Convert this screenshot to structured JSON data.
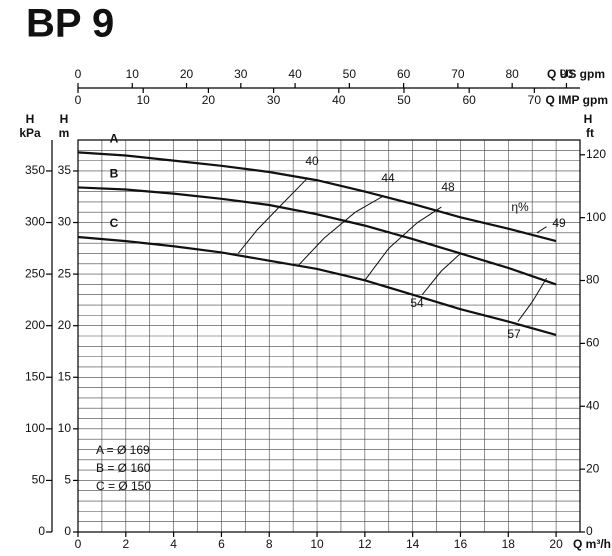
{
  "chart_data": {
    "type": "line",
    "title": "BP 9",
    "xlabel": "Q m³/h",
    "ylabel": {
      "symbol": "H",
      "unit": "m"
    },
    "y_kpa_label": {
      "symbol": "H",
      "unit": "kPa"
    },
    "y2label": {
      "symbol": "H",
      "unit": "ft"
    },
    "x_us_label": "Q US gpm",
    "x_imp_label": "Q IMP gpm",
    "xlim": [
      0,
      21
    ],
    "xticks": [
      0,
      2,
      4,
      6,
      8,
      10,
      12,
      14,
      16,
      18,
      20
    ],
    "xgrid": [
      0,
      1,
      2,
      3,
      4,
      5,
      6,
      7,
      8,
      9,
      10,
      11,
      12,
      13,
      14,
      15,
      16,
      17,
      18,
      19,
      20,
      21
    ],
    "ylim": [
      0,
      38
    ],
    "yticks": [
      0,
      5,
      10,
      15,
      20,
      25,
      30,
      35
    ],
    "ygrid": [
      0,
      1,
      2,
      3,
      4,
      5,
      6,
      7,
      8,
      9,
      10,
      11,
      12,
      13,
      14,
      15,
      16,
      17,
      18,
      19,
      20,
      21,
      22,
      23,
      24,
      25,
      26,
      27,
      28,
      29,
      30,
      31,
      32,
      33,
      34,
      35,
      36,
      37,
      38
    ],
    "y_kpa_lim": [
      0,
      380
    ],
    "y_kpa_ticks": [
      0,
      50,
      100,
      150,
      200,
      250,
      300,
      350
    ],
    "y2lim": [
      0,
      124.7
    ],
    "y2ticks": [
      0,
      20,
      40,
      60,
      80,
      100,
      120
    ],
    "x_us_lim": [
      0,
      92.5
    ],
    "x_us_ticks": [
      0,
      10,
      20,
      30,
      40,
      50,
      60,
      70,
      80,
      90
    ],
    "x_imp_lim": [
      0,
      77
    ],
    "x_imp_ticks": [
      0,
      10,
      20,
      30,
      40,
      50,
      60,
      70
    ],
    "x": [
      0,
      2,
      4,
      6,
      8,
      10,
      12,
      14,
      16,
      18,
      20
    ],
    "series": [
      {
        "name": "A",
        "color": "#111111",
        "values": [
          36.8,
          36.5,
          36.0,
          35.5,
          34.9,
          34.1,
          33.0,
          31.8,
          30.5,
          29.4,
          28.2
        ]
      },
      {
        "name": "B",
        "color": "#111111",
        "values": [
          33.4,
          33.2,
          32.8,
          32.3,
          31.7,
          30.8,
          29.7,
          28.4,
          27.0,
          25.6,
          24.0
        ]
      },
      {
        "name": "C",
        "color": "#111111",
        "values": [
          28.6,
          28.2,
          27.7,
          27.1,
          26.3,
          25.5,
          24.4,
          23.0,
          21.6,
          20.4,
          19.1
        ]
      }
    ],
    "impellers": [
      "A = Ø 169",
      "B = Ø 160",
      "C = Ø 150"
    ],
    "efficiency": {
      "label": "η%",
      "lines": [
        {
          "name": "40",
          "x": [
            6.7,
            7.5,
            8.5,
            9.6
          ],
          "y": [
            27.0,
            29.3,
            31.7,
            34.3
          ]
        },
        {
          "name": "44",
          "x": [
            9.2,
            10.3,
            11.6,
            12.8
          ],
          "y": [
            25.8,
            28.5,
            31.0,
            32.6
          ]
        },
        {
          "name": "48",
          "x": [
            12.0,
            13.0,
            14.2,
            15.2
          ],
          "y": [
            24.4,
            27.5,
            30.0,
            31.5
          ]
        },
        {
          "name": "49",
          "x": [
            19.2,
            19.6
          ],
          "y": [
            29.0,
            29.6
          ]
        },
        {
          "name": "54",
          "x": [
            14.4,
            15.2,
            16.0
          ],
          "y": [
            23.0,
            25.3,
            27.0
          ]
        },
        {
          "name": "57",
          "x": [
            18.4,
            19.0,
            19.6
          ],
          "y": [
            20.4,
            22.3,
            24.6
          ]
        }
      ]
    }
  }
}
